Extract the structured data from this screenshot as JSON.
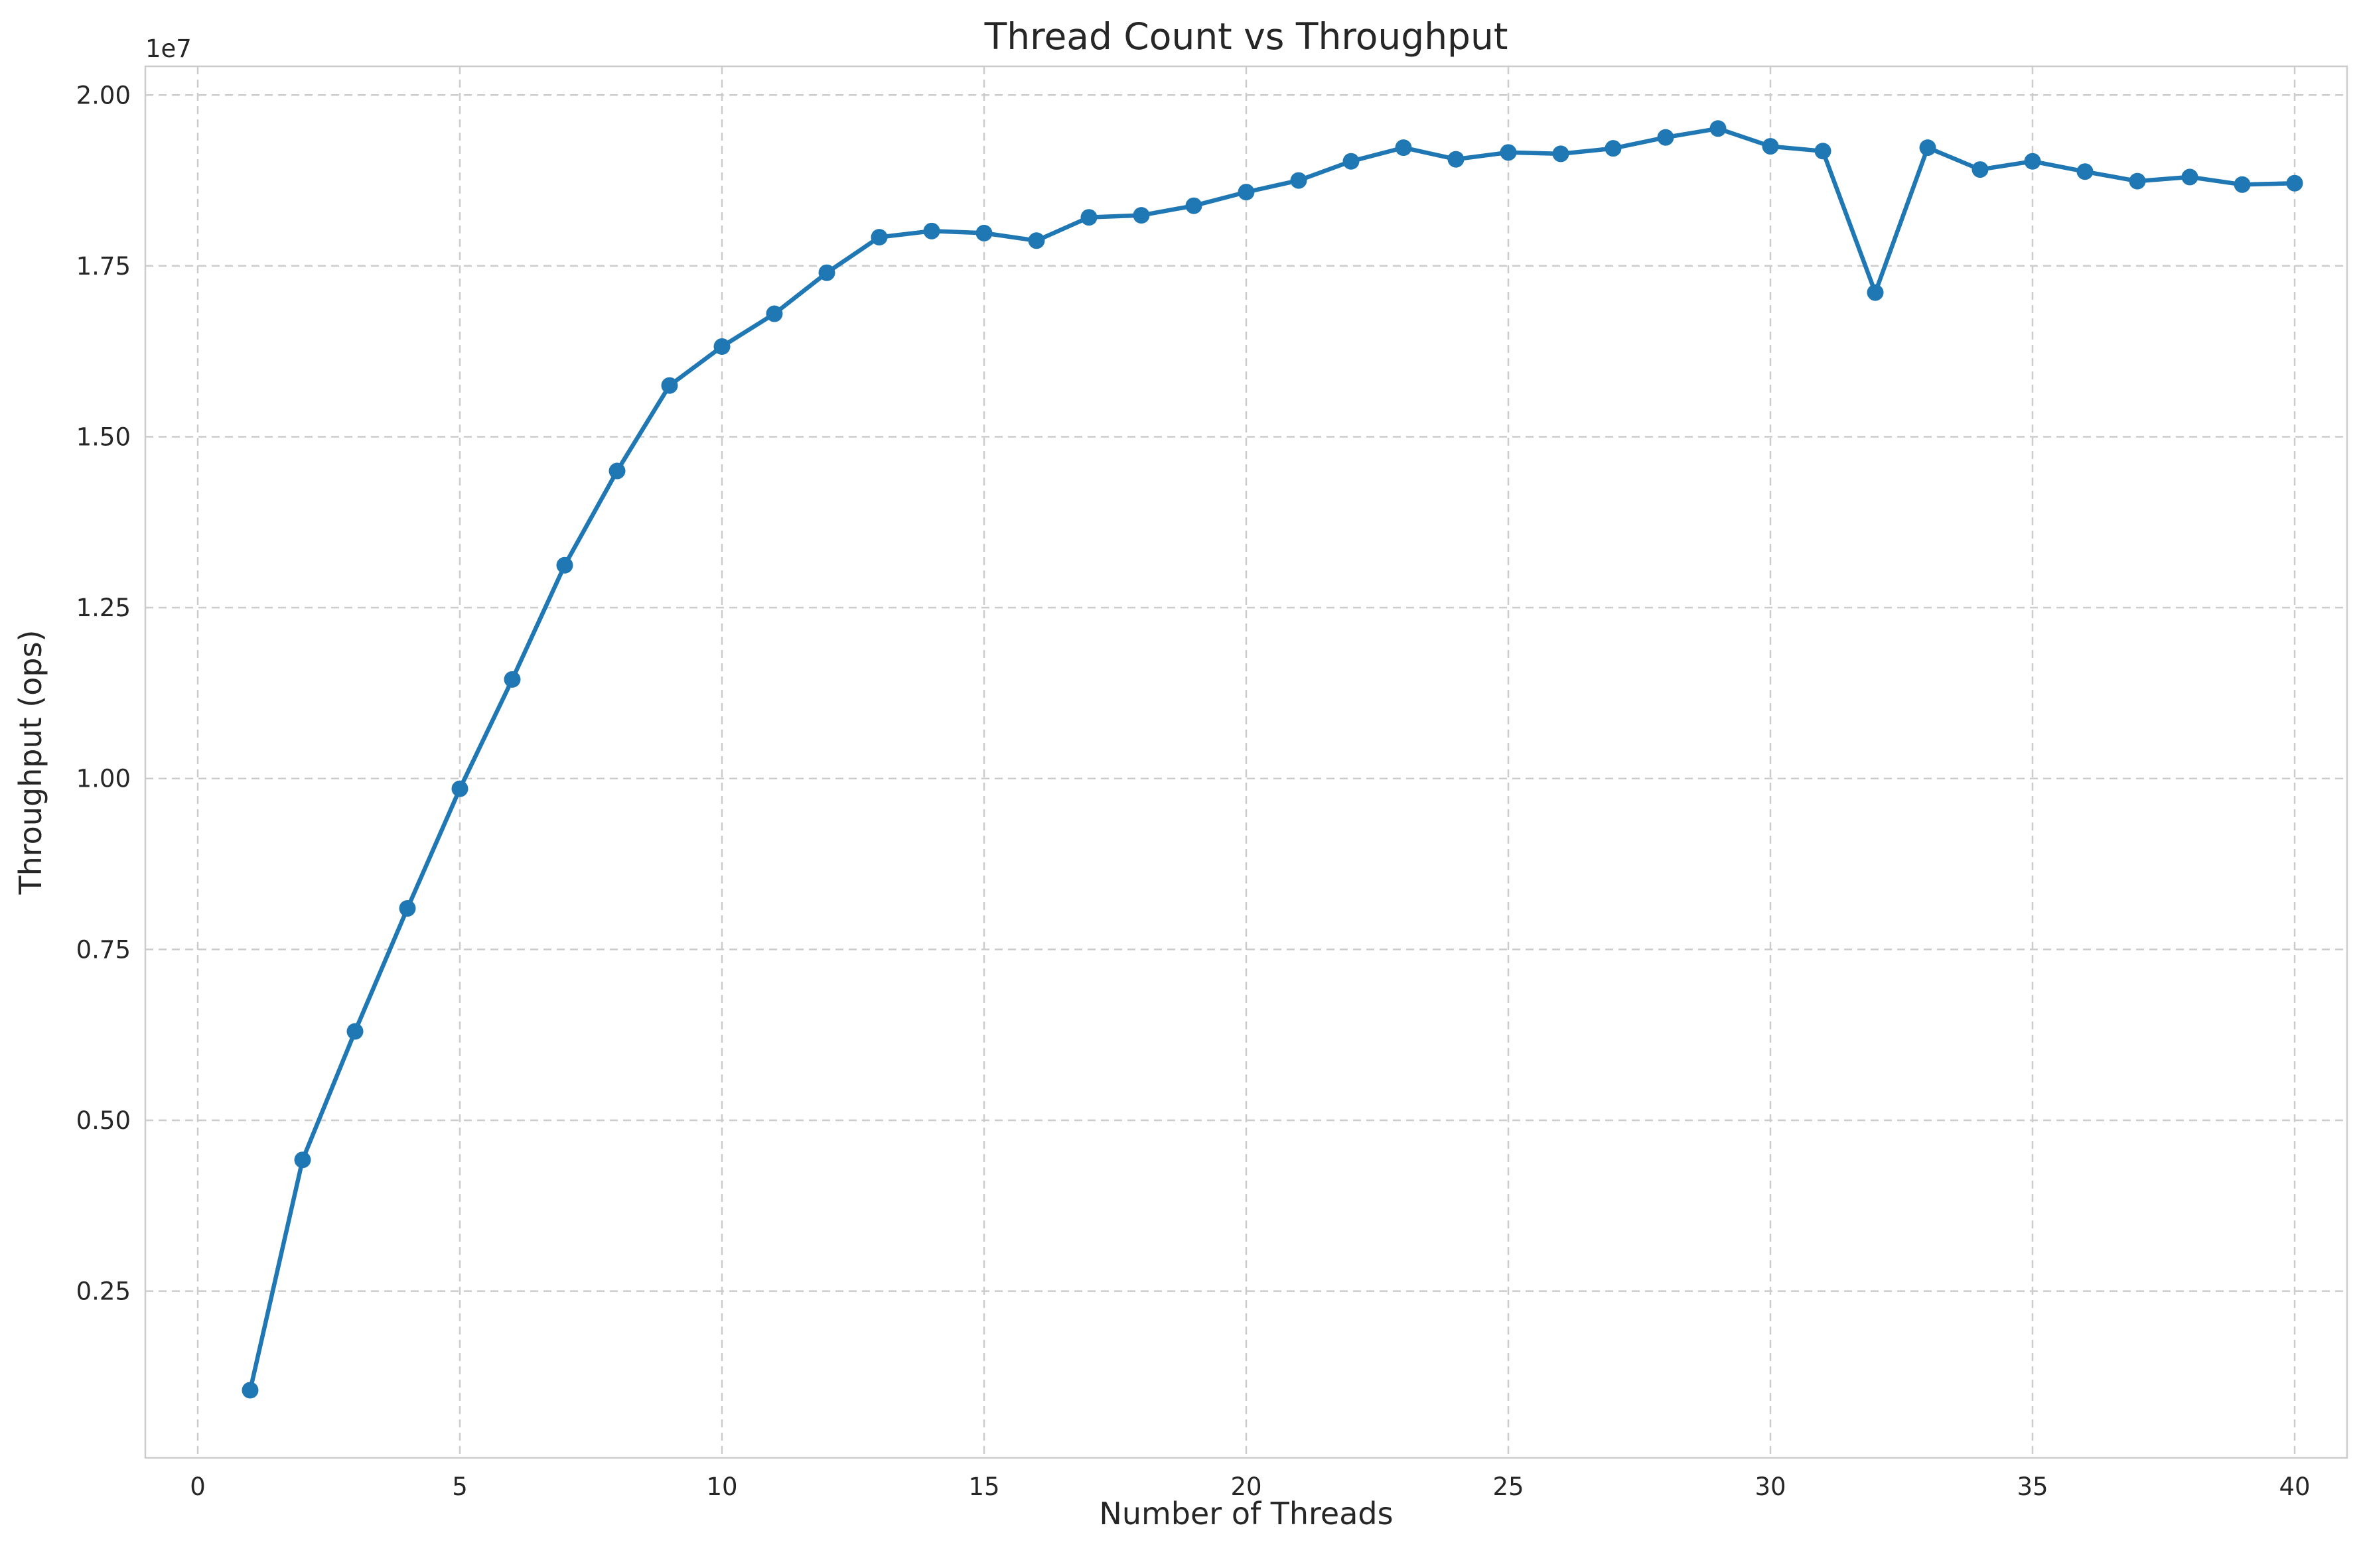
{
  "chart_data": {
    "type": "line",
    "title": "Thread Count vs Throughput",
    "xlabel": "Number of Threads",
    "ylabel": "Throughput (ops)",
    "y_offset_label": "1e7",
    "xlim": [
      -1,
      41
    ],
    "ylim": [
      60000,
      20420000
    ],
    "x_ticks": [
      0,
      5,
      10,
      15,
      20,
      25,
      30,
      35,
      40
    ],
    "x_tick_labels": [
      "0",
      "5",
      "10",
      "15",
      "20",
      "25",
      "30",
      "35",
      "40"
    ],
    "y_ticks": [
      2500000,
      5000000,
      7500000,
      10000000,
      12500000,
      15000000,
      17500000,
      20000000
    ],
    "y_tick_labels": [
      "0.25",
      "0.50",
      "0.75",
      "1.00",
      "1.25",
      "1.50",
      "1.75",
      "2.00"
    ],
    "grid": true,
    "series": [
      {
        "color": "#1f77b4",
        "x": [
          1,
          2,
          3,
          4,
          5,
          6,
          7,
          8,
          9,
          10,
          11,
          12,
          13,
          14,
          15,
          16,
          17,
          18,
          19,
          20,
          21,
          22,
          23,
          24,
          25,
          26,
          27,
          28,
          29,
          30,
          31,
          32,
          33,
          34,
          35,
          36,
          37,
          38,
          39,
          40
        ],
        "y": [
          1050000,
          4420000,
          6300000,
          8100000,
          9850000,
          11450000,
          13120000,
          14500000,
          15750000,
          16320000,
          16800000,
          17400000,
          17920000,
          18010000,
          17980000,
          17870000,
          18210000,
          18240000,
          18380000,
          18580000,
          18750000,
          19030000,
          19230000,
          19060000,
          19160000,
          19140000,
          19220000,
          19380000,
          19510000,
          19250000,
          19180000,
          17110000,
          19230000,
          18910000,
          19030000,
          18880000,
          18740000,
          18800000,
          18690000,
          18710000
        ]
      }
    ]
  }
}
